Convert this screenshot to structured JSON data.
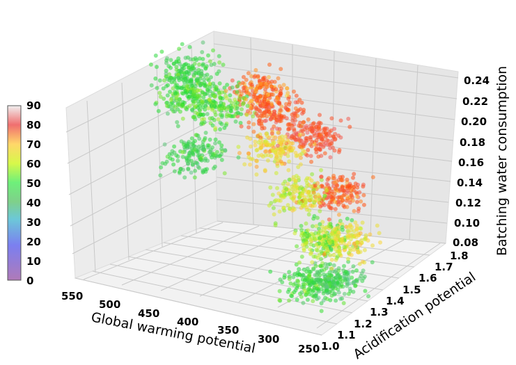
{
  "chart_data": {
    "type": "scatter",
    "projection": "3d",
    "title": "",
    "xlabel": "Global warming potential",
    "ylabel": "Acidification potential",
    "zlabel": "Batching water consumption",
    "xlim": [
      250,
      550
    ],
    "ylim": [
      1.0,
      1.8
    ],
    "zlim": [
      0.08,
      0.24
    ],
    "x_ticks": [
      "550",
      "500",
      "450",
      "400",
      "350",
      "300",
      "250"
    ],
    "y_ticks": [
      "1.0",
      "1.1",
      "1.2",
      "1.3",
      "1.4",
      "1.5",
      "1.6",
      "1.7",
      "1.8"
    ],
    "z_ticks": [
      "0.08",
      "0.10",
      "0.12",
      "0.14",
      "0.16",
      "0.18",
      "0.20",
      "0.22",
      "0.24"
    ],
    "grid": true,
    "colorbar": {
      "range": [
        0,
        90
      ],
      "ticks": [
        "0",
        "10",
        "20",
        "30",
        "40",
        "50",
        "60",
        "70",
        "80",
        "90"
      ],
      "placement": "left",
      "colors": [
        "#7b2c8e",
        "#2636d8",
        "#1fa0c8",
        "#16b24a",
        "#17d61c",
        "#c8f02c",
        "#ffe21c",
        "#f61a1a",
        "#f0f0f0"
      ]
    },
    "series": [
      {
        "color_by": "colorbar value",
        "clusters": [
          {
            "x": 530,
            "y": 1.55,
            "z": 0.22,
            "color_value": 48
          },
          {
            "x": 510,
            "y": 1.45,
            "z": 0.21,
            "color_value": 50
          },
          {
            "x": 480,
            "y": 1.5,
            "z": 0.2,
            "color_value": 52
          },
          {
            "x": 470,
            "y": 1.3,
            "z": 0.18,
            "color_value": 46
          },
          {
            "x": 450,
            "y": 1.6,
            "z": 0.21,
            "color_value": 78
          },
          {
            "x": 420,
            "y": 1.55,
            "z": 0.2,
            "color_value": 82
          },
          {
            "x": 400,
            "y": 1.45,
            "z": 0.18,
            "color_value": 68
          },
          {
            "x": 380,
            "y": 1.6,
            "z": 0.18,
            "color_value": 84
          },
          {
            "x": 360,
            "y": 1.4,
            "z": 0.15,
            "color_value": 62
          },
          {
            "x": 340,
            "y": 1.55,
            "z": 0.14,
            "color_value": 80
          },
          {
            "x": 320,
            "y": 1.35,
            "z": 0.12,
            "color_value": 56
          },
          {
            "x": 300,
            "y": 1.2,
            "z": 0.1,
            "color_value": 50
          },
          {
            "x": 290,
            "y": 1.3,
            "z": 0.09,
            "color_value": 44
          },
          {
            "x": 310,
            "y": 1.45,
            "z": 0.11,
            "color_value": 66
          }
        ]
      }
    ]
  }
}
